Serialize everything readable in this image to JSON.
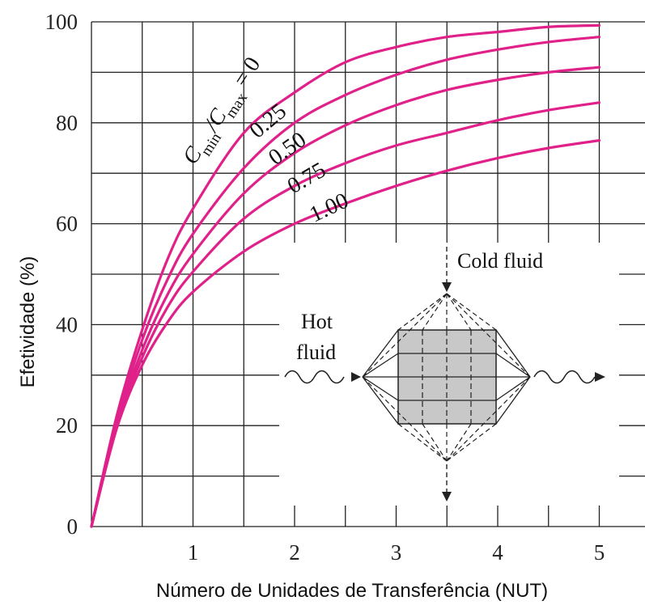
{
  "chart_data": {
    "type": "line",
    "title": "",
    "xlabel": "Número de Unidades de Transferência (NUT)",
    "ylabel": "Efetividade (%)",
    "xlim": [
      0,
      5.25
    ],
    "ylim": [
      0,
      100
    ],
    "x_ticks": [
      "1",
      "2",
      "3",
      "4",
      "5"
    ],
    "y_ticks": [
      "0",
      "20",
      "40",
      "60",
      "80",
      "100"
    ],
    "grid": true,
    "series": [
      {
        "cr": 0,
        "name": "C min /C max = 0",
        "color": "#e0218a",
        "x": [
          0,
          0.25,
          0.5,
          0.75,
          1,
          1.5,
          2,
          2.5,
          3,
          3.5,
          4,
          4.5,
          5
        ],
        "y": [
          0,
          22,
          39,
          53,
          63,
          78,
          86,
          92,
          95,
          97,
          98,
          99,
          99.3
        ]
      },
      {
        "cr": 0.25,
        "name": "0.25",
        "color": "#e0218a",
        "x": [
          0,
          0.25,
          0.5,
          0.75,
          1,
          1.5,
          2,
          2.5,
          3,
          3.5,
          4,
          4.5,
          5
        ],
        "y": [
          0,
          21,
          37,
          49,
          58,
          71,
          80,
          85.5,
          89.5,
          92.5,
          94.5,
          96,
          97
        ]
      },
      {
        "cr": 0.5,
        "name": "0.50",
        "color": "#e0218a",
        "x": [
          0,
          0.25,
          0.5,
          0.75,
          1,
          1.5,
          2,
          2.5,
          3,
          3.5,
          4,
          4.5,
          5
        ],
        "y": [
          0,
          20.5,
          35,
          46,
          54,
          66,
          74,
          79.5,
          83.5,
          86.5,
          88.5,
          90,
          91
        ]
      },
      {
        "cr": 0.75,
        "name": "0.75",
        "color": "#e0218a",
        "x": [
          0,
          0.25,
          0.5,
          0.75,
          1,
          1.5,
          2,
          2.5,
          3,
          3.5,
          4,
          4.5,
          5
        ],
        "y": [
          0,
          20,
          33.5,
          43.5,
          50.5,
          61,
          67.5,
          72,
          75.5,
          78,
          80.5,
          82.5,
          84
        ]
      },
      {
        "cr": 1,
        "name": "1.00",
        "color": "#e0218a",
        "x": [
          0,
          0.25,
          0.5,
          0.75,
          1,
          1.5,
          2,
          2.5,
          3,
          3.5,
          4,
          4.5,
          5
        ],
        "y": [
          0,
          19.5,
          32,
          40.5,
          46.5,
          54.5,
          60,
          64,
          67.5,
          70.5,
          73,
          75,
          76.5
        ]
      }
    ],
    "annotations": {
      "curve_labels": [
        "C min /C max = 0",
        "0.25",
        "0.50",
        "0.75",
        "1.00"
      ],
      "inset": {
        "cold_fluid": "Cold fluid",
        "hot_fluid_line1": "Hot",
        "hot_fluid_line2": "fluid"
      }
    }
  },
  "labels": {
    "label_C1": "C",
    "label_min": "min",
    "label_slash_C": "/C",
    "label_max": "max",
    "label_eq_zero": " = 0"
  }
}
